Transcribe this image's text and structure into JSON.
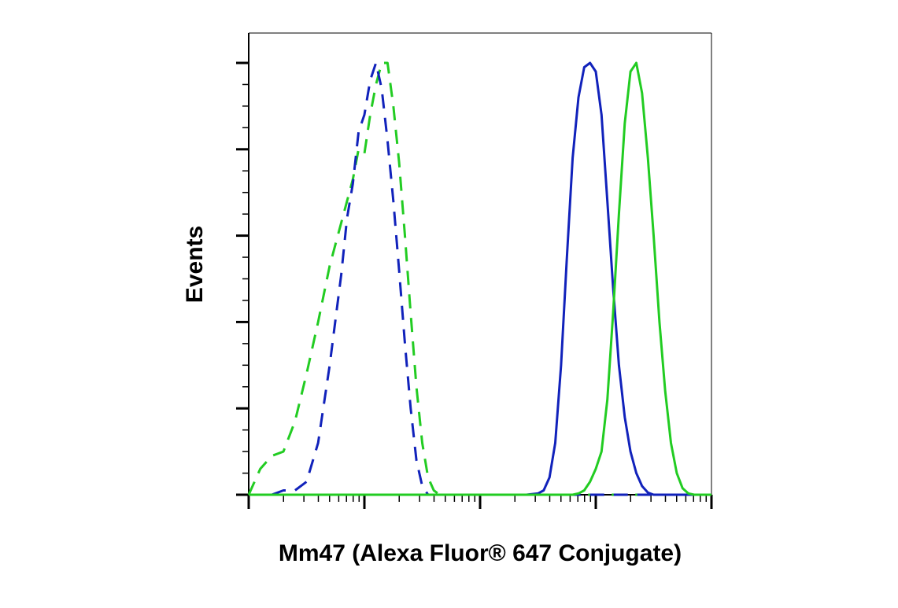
{
  "chart_data": {
    "type": "line",
    "title": "",
    "xlabel": "Mm47 (Alexa Fluor® 647 Conjugate)",
    "ylabel": "Events",
    "x_scale": "log",
    "x_decades": 4,
    "xlim": [
      0,
      4
    ],
    "ylim": [
      0,
      100
    ],
    "grid": false,
    "legend": "none",
    "series": [
      {
        "color": "#22cc22",
        "dash": "dashed",
        "x": [
          0.0,
          0.1,
          0.2,
          0.3,
          0.4,
          0.5,
          0.6,
          0.7,
          0.8,
          0.9,
          0.95,
          1.0,
          1.05,
          1.1,
          1.15,
          1.2,
          1.25,
          1.3,
          1.35,
          1.4,
          1.45,
          1.5,
          1.55,
          1.6,
          1.65,
          1.7,
          1.75,
          1.8,
          2.0,
          2.5,
          3.0,
          3.5,
          4.0
        ],
        "values": [
          0,
          6,
          9,
          10,
          17,
          28,
          40,
          53,
          63,
          73,
          80,
          79,
          88,
          95,
          100,
          100,
          90,
          77,
          60,
          42,
          25,
          12,
          4,
          1,
          0,
          0,
          0,
          0,
          0,
          0,
          0,
          0,
          0
        ]
      },
      {
        "color": "#1122bb",
        "dash": "dashed",
        "x": [
          0.0,
          0.2,
          0.3,
          0.4,
          0.5,
          0.6,
          0.7,
          0.8,
          0.85,
          0.9,
          0.95,
          1.0,
          1.05,
          1.1,
          1.15,
          1.2,
          1.25,
          1.3,
          1.35,
          1.4,
          1.45,
          1.5,
          1.55,
          1.6,
          1.65,
          2.0,
          2.5,
          3.0,
          3.5,
          4.0
        ],
        "values": [
          0,
          0,
          1,
          1,
          3,
          12,
          30,
          51,
          64,
          72,
          84,
          88,
          96,
          100,
          94,
          82,
          68,
          52,
          35,
          20,
          8,
          2,
          0,
          0,
          0,
          0,
          0,
          0,
          0,
          0
        ]
      },
      {
        "color": "#1122bb",
        "dash": "solid",
        "x": [
          0.0,
          2.0,
          2.4,
          2.5,
          2.55,
          2.6,
          2.65,
          2.7,
          2.75,
          2.8,
          2.85,
          2.9,
          2.95,
          3.0,
          3.05,
          3.1,
          3.15,
          3.2,
          3.25,
          3.3,
          3.35,
          3.4,
          3.45,
          3.5,
          3.55,
          4.0
        ],
        "values": [
          0,
          0,
          0,
          0.3,
          1,
          4,
          12,
          30,
          55,
          78,
          92,
          99,
          100,
          98,
          88,
          68,
          48,
          30,
          18,
          10,
          5,
          2,
          0.5,
          0,
          0,
          0
        ]
      },
      {
        "color": "#22cc22",
        "dash": "solid",
        "x": [
          0.0,
          2.6,
          2.8,
          2.85,
          2.9,
          2.95,
          3.0,
          3.05,
          3.1,
          3.15,
          3.2,
          3.25,
          3.3,
          3.35,
          3.4,
          3.45,
          3.5,
          3.55,
          3.6,
          3.65,
          3.7,
          3.75,
          3.8,
          3.85,
          4.0
        ],
        "values": [
          0,
          0,
          0,
          0.3,
          1,
          3,
          6,
          10,
          22,
          42,
          65,
          86,
          98,
          100,
          93,
          78,
          60,
          40,
          24,
          12,
          5,
          1.5,
          0.3,
          0,
          0
        ]
      }
    ]
  }
}
